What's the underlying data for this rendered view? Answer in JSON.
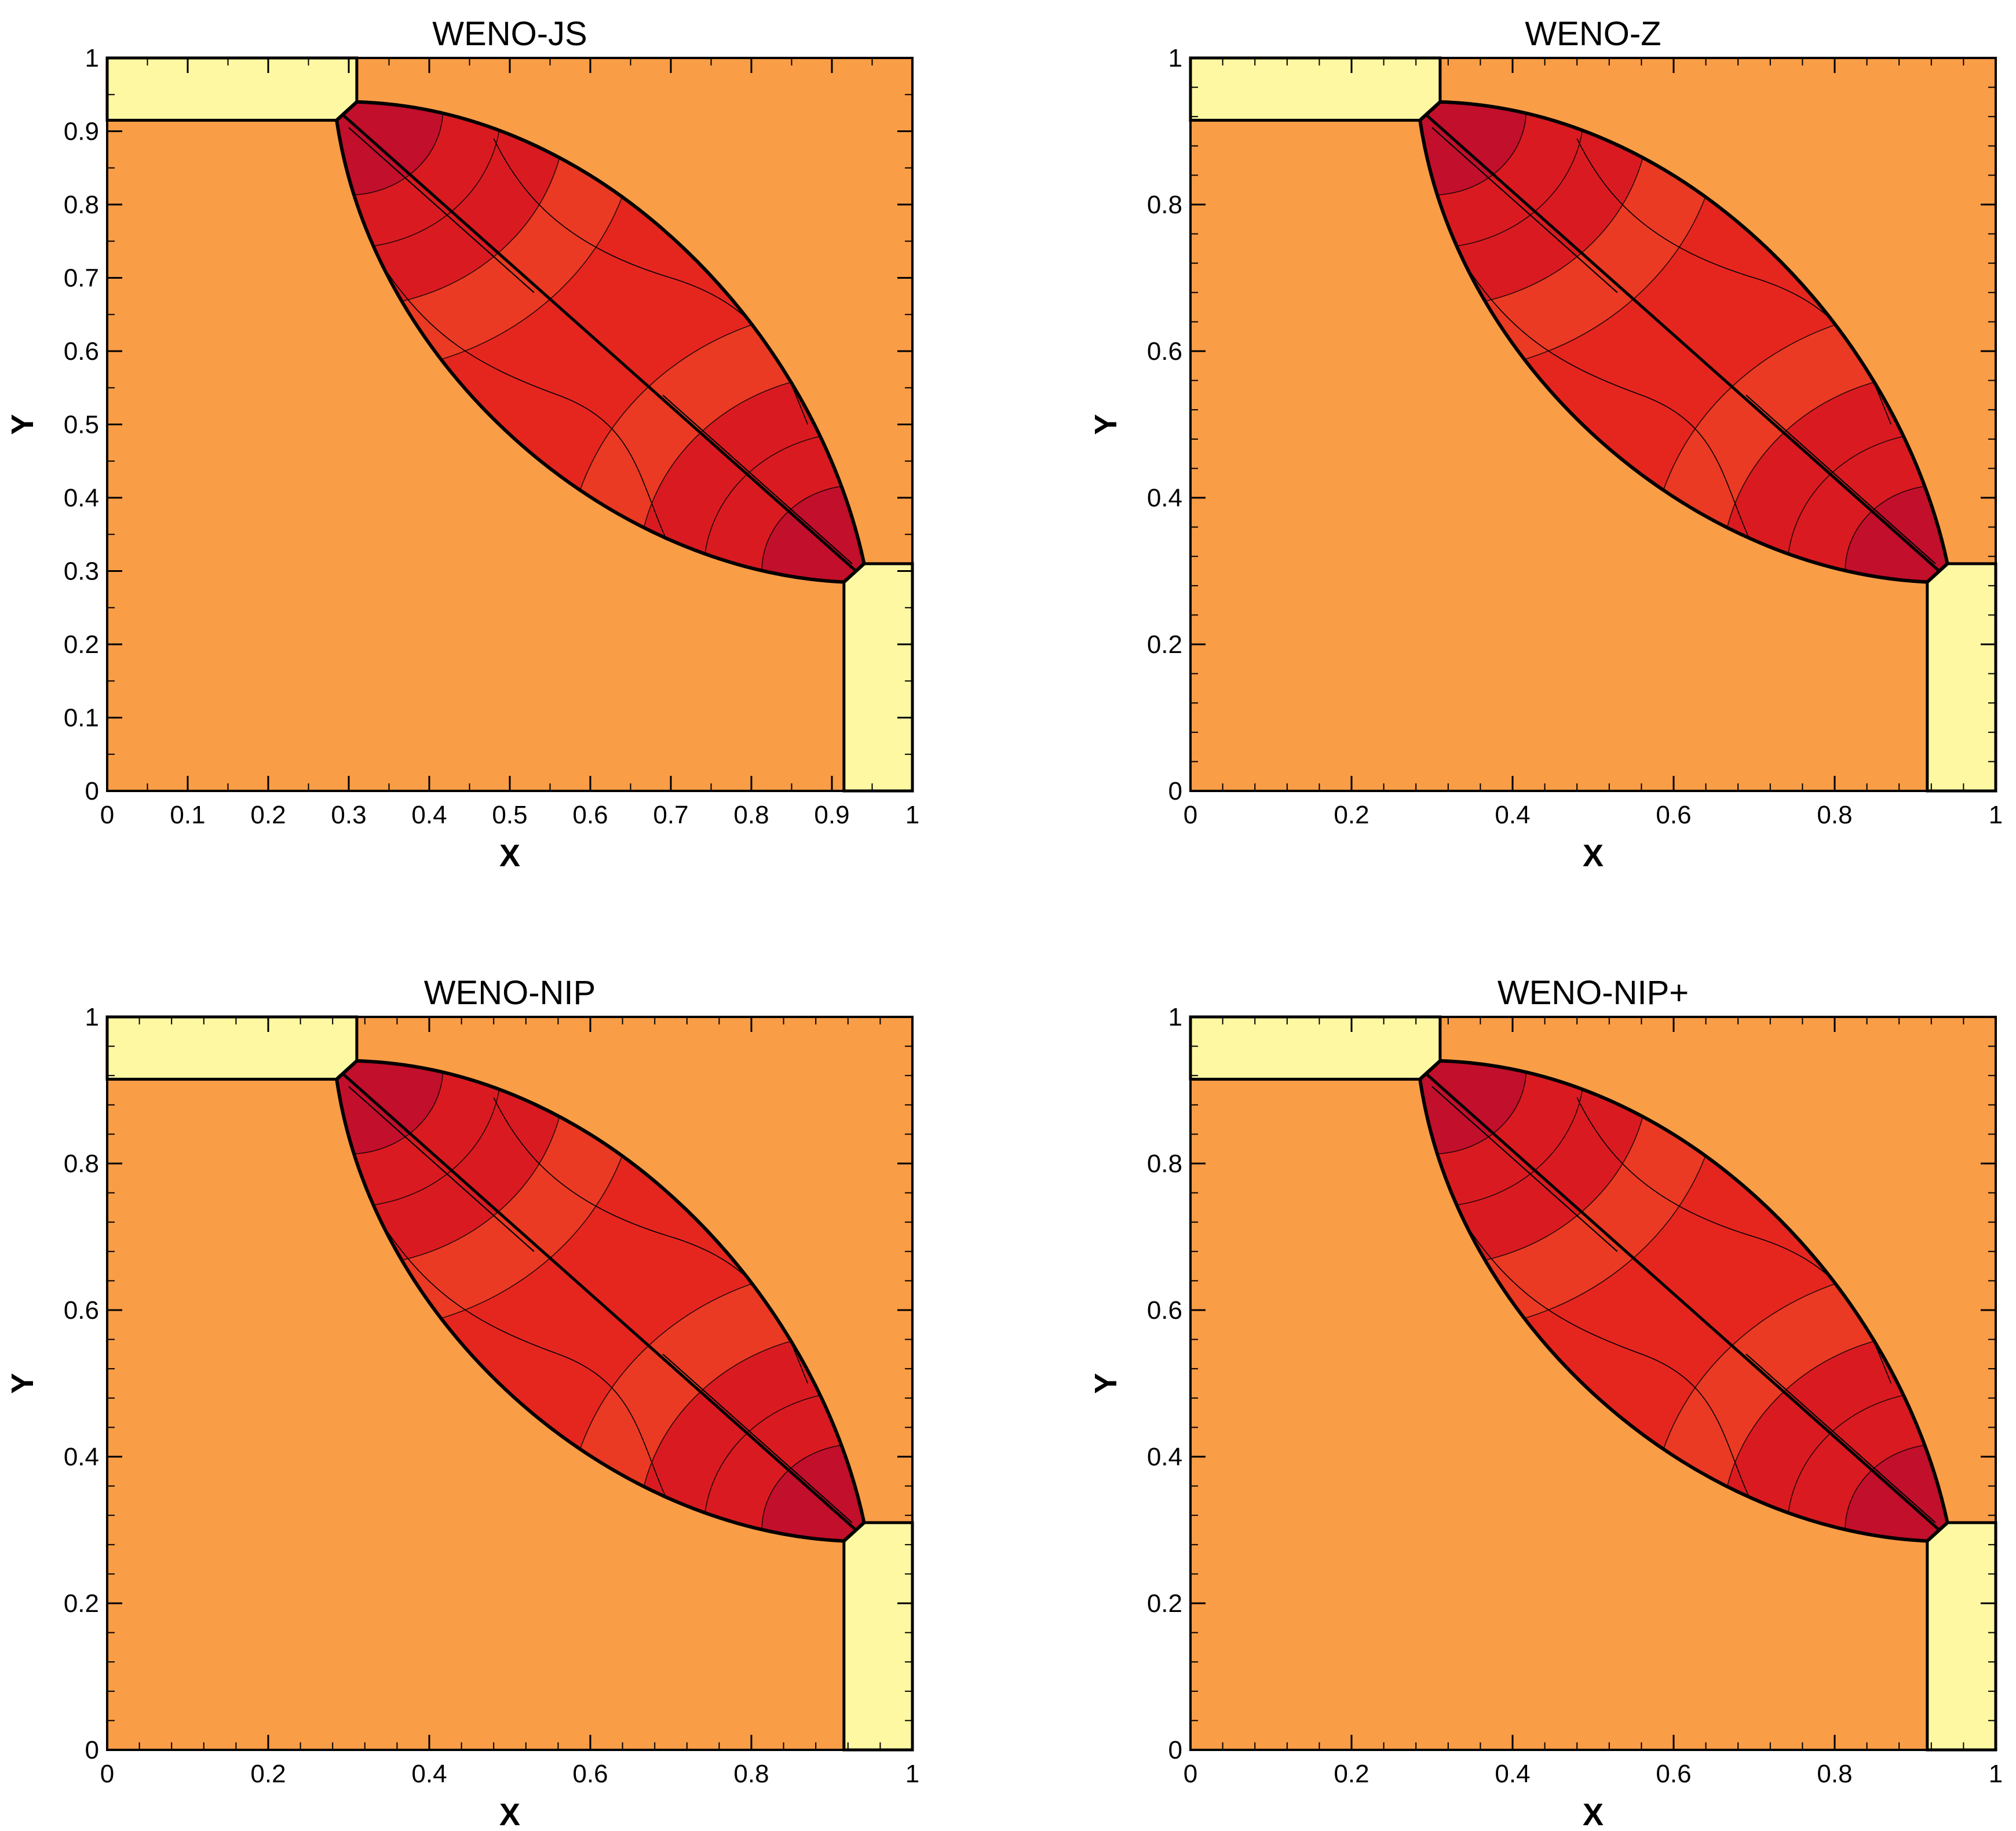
{
  "figure": {
    "colors": {
      "background": "#ffffff",
      "outer_region": "#f99d47",
      "corner_region": "#fef8a3",
      "lens_main": "#e5261f",
      "lens_light": "#ea3a24",
      "lens_mid": "#d91b21",
      "lens_dark": "#c20f2c",
      "lines": "#000000"
    }
  },
  "chart_data": [
    {
      "type": "contour",
      "id": "weno-js",
      "title": "WENO-JS",
      "xlabel": "X",
      "ylabel": "Y",
      "xlim": [
        0,
        1
      ],
      "ylim": [
        0,
        1
      ],
      "xticks": [
        "0",
        "0.1",
        "0.2",
        "0.3",
        "0.4",
        "0.5",
        "0.6",
        "0.7",
        "0.8",
        "0.9",
        "1"
      ],
      "yticks": [
        "0",
        "0.1",
        "0.2",
        "0.3",
        "0.4",
        "0.5",
        "0.6",
        "0.7",
        "0.8",
        "0.9",
        "1"
      ],
      "regions": [
        {
          "name": "upper-left-state",
          "x": [
            0,
            0.31
          ],
          "y": [
            0.915,
            1
          ]
        },
        {
          "name": "lower-right-state",
          "x": [
            0.915,
            1
          ],
          "y": [
            0,
            0.31
          ]
        }
      ],
      "lens_corners": [
        [
          0.285,
          0.915
        ],
        [
          0.31,
          0.94
        ],
        [
          0.94,
          0.31
        ],
        [
          0.915,
          0.285
        ]
      ]
    },
    {
      "type": "contour",
      "id": "weno-z",
      "title": "WENO-Z",
      "xlabel": "X",
      "ylabel": "Y",
      "xlim": [
        0,
        1
      ],
      "ylim": [
        0,
        1
      ],
      "xticks": [
        "0",
        "0.2",
        "0.4",
        "0.6",
        "0.8",
        "1"
      ],
      "yticks": [
        "0",
        "0.2",
        "0.4",
        "0.6",
        "0.8",
        "1"
      ],
      "regions": [
        {
          "name": "upper-left-state",
          "x": [
            0,
            0.31
          ],
          "y": [
            0.915,
            1
          ]
        },
        {
          "name": "lower-right-state",
          "x": [
            0.915,
            1
          ],
          "y": [
            0,
            0.31
          ]
        }
      ],
      "lens_corners": [
        [
          0.285,
          0.915
        ],
        [
          0.31,
          0.94
        ],
        [
          0.94,
          0.31
        ],
        [
          0.915,
          0.285
        ]
      ]
    },
    {
      "type": "contour",
      "id": "weno-nip",
      "title": "WENO-NIP",
      "xlabel": "X",
      "ylabel": "Y",
      "xlim": [
        0,
        1
      ],
      "ylim": [
        0,
        1
      ],
      "xticks": [
        "0",
        "0.2",
        "0.4",
        "0.6",
        "0.8",
        "1"
      ],
      "yticks": [
        "0",
        "0.2",
        "0.4",
        "0.6",
        "0.8",
        "1"
      ],
      "regions": [
        {
          "name": "upper-left-state",
          "x": [
            0,
            0.31
          ],
          "y": [
            0.915,
            1
          ]
        },
        {
          "name": "lower-right-state",
          "x": [
            0.915,
            1
          ],
          "y": [
            0,
            0.31
          ]
        }
      ],
      "lens_corners": [
        [
          0.285,
          0.915
        ],
        [
          0.31,
          0.94
        ],
        [
          0.94,
          0.31
        ],
        [
          0.915,
          0.285
        ]
      ]
    },
    {
      "type": "contour",
      "id": "weno-nip-plus",
      "title": "WENO-NIP+",
      "xlabel": "X",
      "ylabel": "Y",
      "xlim": [
        0,
        1
      ],
      "ylim": [
        0,
        1
      ],
      "xticks": [
        "0",
        "0.2",
        "0.4",
        "0.6",
        "0.8",
        "1"
      ],
      "yticks": [
        "0",
        "0.2",
        "0.4",
        "0.6",
        "0.8",
        "1"
      ],
      "regions": [
        {
          "name": "upper-left-state",
          "x": [
            0,
            0.31
          ],
          "y": [
            0.915,
            1
          ]
        },
        {
          "name": "lower-right-state",
          "x": [
            0.915,
            1
          ],
          "y": [
            0,
            0.31
          ]
        }
      ],
      "lens_corners": [
        [
          0.285,
          0.915
        ],
        [
          0.31,
          0.94
        ],
        [
          0.94,
          0.31
        ],
        [
          0.915,
          0.285
        ]
      ]
    }
  ]
}
